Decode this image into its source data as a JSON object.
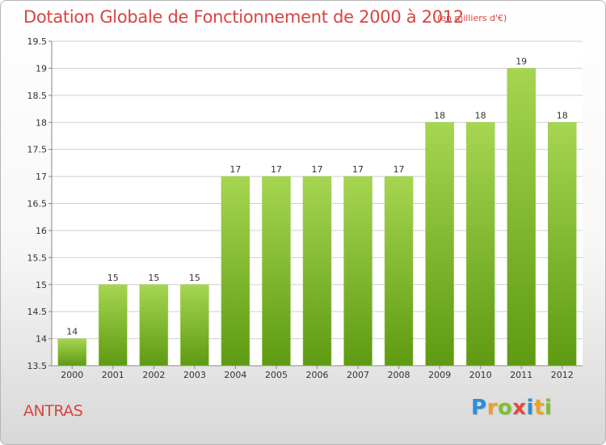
{
  "header": {
    "title": "Dotation Globale de Fonctionnement de 2000 à 2012",
    "unit": "(en milliers d'€)"
  },
  "footer": {
    "commune": "ANTRAS",
    "logo_letters": [
      "P",
      "r",
      "o",
      "x",
      "i",
      "t",
      "i"
    ],
    "logo_colors": [
      "#2a8fd6",
      "#f0a020",
      "#7cc22e",
      "#e34b3b",
      "#2a8fd6",
      "#f0a020",
      "#7cc22e"
    ]
  },
  "colors": {
    "title": "#d9443f",
    "bar_light": "#a6d651",
    "bar_dark": "#5e9a12",
    "grid": "#cfcfcf"
  },
  "chart_data": {
    "type": "bar",
    "title": "Dotation Globale de Fonctionnement de 2000 à 2012",
    "subtitle": "(en milliers d'€)",
    "categories": [
      "2000",
      "2001",
      "2002",
      "2003",
      "2004",
      "2005",
      "2006",
      "2007",
      "2008",
      "2009",
      "2010",
      "2011",
      "2012"
    ],
    "values": [
      14,
      15,
      15,
      15,
      17,
      17,
      17,
      17,
      17,
      18,
      18,
      19,
      18
    ],
    "ylim": [
      13.5,
      19.5
    ],
    "yticks": [
      13.5,
      14,
      14.5,
      15,
      15.5,
      16,
      16.5,
      17,
      17.5,
      18,
      18.5,
      19,
      19.5
    ],
    "ytick_labels": [
      "13.5",
      "14",
      "14.5",
      "15",
      "15.5",
      "16",
      "16.5",
      "17",
      "17.5",
      "18",
      "18.5",
      "19",
      "19.5"
    ],
    "grid": true,
    "xlabel": "",
    "ylabel": ""
  }
}
